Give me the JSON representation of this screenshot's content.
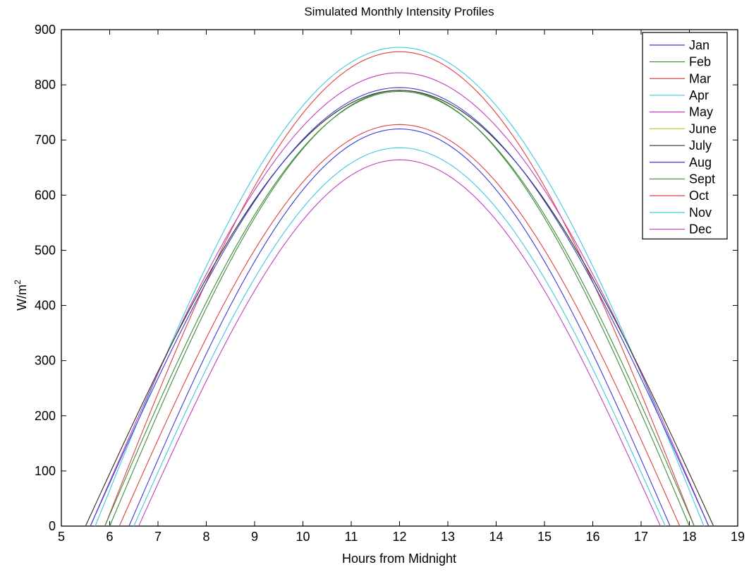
{
  "chart_data": {
    "type": "line",
    "title": "Simulated Monthly Intensity Profiles",
    "xlabel": "Hours from Midnight",
    "ylabel": "W/m",
    "ylabel_superscript": "2",
    "xlim": [
      5,
      19
    ],
    "ylim": [
      0,
      900
    ],
    "xticks": [
      5,
      6,
      7,
      8,
      9,
      10,
      11,
      12,
      13,
      14,
      15,
      16,
      17,
      18,
      19
    ],
    "yticks": [
      0,
      100,
      200,
      300,
      400,
      500,
      600,
      700,
      800,
      900
    ],
    "grid": false,
    "legend_position": "top-right",
    "series": [
      {
        "name": "Jan",
        "color": "#3a3ad8",
        "sunrise": 6.4,
        "sunset": 17.6,
        "peak_x": 12.0,
        "peak": 720
      },
      {
        "name": "Feb",
        "color": "#3c8c3c",
        "sunrise": 6.0,
        "sunset": 18.0,
        "peak_x": 12.0,
        "peak": 790
      },
      {
        "name": "Mar",
        "color": "#e04040",
        "sunrise": 5.9,
        "sunset": 18.1,
        "peak_x": 12.0,
        "peak": 860
      },
      {
        "name": "Apr",
        "color": "#40c8e0",
        "sunrise": 5.7,
        "sunset": 18.3,
        "peak_x": 12.0,
        "peak": 868
      },
      {
        "name": "May",
        "color": "#c040c0",
        "sunrise": 5.6,
        "sunset": 18.4,
        "peak_x": 12.0,
        "peak": 822
      },
      {
        "name": "June",
        "color": "#c8c840",
        "sunrise": 5.5,
        "sunset": 18.5,
        "peak_x": 12.0,
        "peak": 790
      },
      {
        "name": "July",
        "color": "#303030",
        "sunrise": 5.5,
        "sunset": 18.5,
        "peak_x": 12.0,
        "peak": 790
      },
      {
        "name": "Aug",
        "color": "#3a3ad8",
        "sunrise": 5.6,
        "sunset": 18.4,
        "peak_x": 12.0,
        "peak": 795
      },
      {
        "name": "Sept",
        "color": "#3c8c3c",
        "sunrise": 5.9,
        "sunset": 18.1,
        "peak_x": 12.0,
        "peak": 788
      },
      {
        "name": "Oct",
        "color": "#e04040",
        "sunrise": 6.2,
        "sunset": 17.8,
        "peak_x": 12.0,
        "peak": 728
      },
      {
        "name": "Nov",
        "color": "#40c8e0",
        "sunrise": 6.5,
        "sunset": 17.5,
        "peak_x": 12.0,
        "peak": 686
      },
      {
        "name": "Dec",
        "color": "#c040c0",
        "sunrise": 6.6,
        "sunset": 17.4,
        "peak_x": 12.0,
        "peak": 664
      }
    ]
  }
}
